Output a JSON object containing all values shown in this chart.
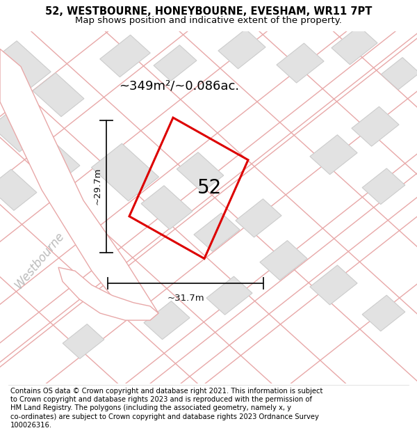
{
  "title_line1": "52, WESTBOURNE, HONEYBOURNE, EVESHAM, WR11 7PT",
  "title_line2": "Map shows position and indicative extent of the property.",
  "area_label": "~349m²/~0.086ac.",
  "property_number": "52",
  "dim_height": "~29.7m",
  "dim_width": "~31.7m",
  "street_label": "Westbourne",
  "map_bg": "#f7f4f4",
  "road_line_color": "#e8a8a8",
  "building_fill": "#e2e2e2",
  "building_stroke": "#cccccc",
  "property_stroke": "#dd0000",
  "dim_color": "#111111",
  "street_color": "#bbbbbb",
  "title_fontsize": 10.5,
  "subtitle_fontsize": 9.5,
  "label_fontsize": 13,
  "number_fontsize": 20,
  "street_fontsize": 12,
  "footer_fontsize": 7.2,
  "footer_lines": [
    "Contains OS data © Crown copyright and database right 2021. This information is subject",
    "to Crown copyright and database rights 2023 and is reproduced with the permission of",
    "HM Land Registry. The polygons (including the associated geometry, namely x, y",
    "co-ordinates) are subject to Crown copyright and database rights 2023 Ordnance Survey",
    "100026316."
  ]
}
